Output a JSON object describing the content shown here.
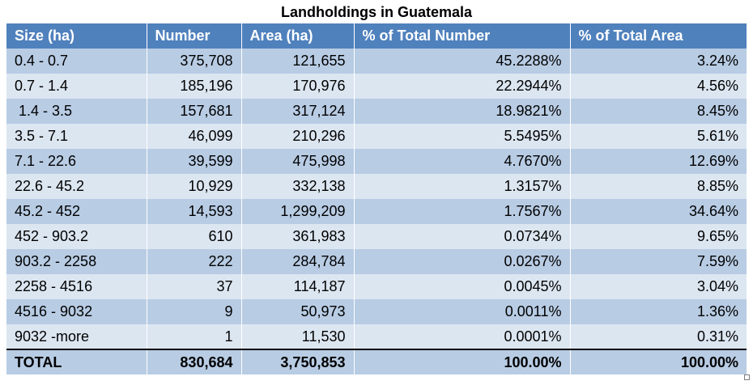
{
  "title": "Landholdings in Guatemala",
  "columns": [
    "Size (ha)",
    "Number",
    "Area (ha)",
    "% of Total Number",
    "% of Total Area"
  ],
  "rows": [
    [
      "0.4 - 0.7",
      "375,708",
      "121,655",
      "45.2288%",
      "3.24%"
    ],
    [
      "0.7 - 1.4",
      "185,196",
      "170,976",
      "22.2944%",
      "4.56%"
    ],
    [
      " 1.4 - 3.5",
      "157,681",
      "317,124",
      "18.9821%",
      "8.45%"
    ],
    [
      "3.5 - 7.1",
      "46,099",
      "210,296",
      "5.5495%",
      "5.61%"
    ],
    [
      "7.1 - 22.6",
      "39,599",
      "475,998",
      "4.7670%",
      "12.69%"
    ],
    [
      "22.6 - 45.2",
      "10,929",
      "332,138",
      "1.3157%",
      "8.85%"
    ],
    [
      "45.2 - 452",
      "14,593",
      "1,299,209",
      "1.7567%",
      "34.64%"
    ],
    [
      "452 - 903.2",
      "610",
      "361,983",
      "0.0734%",
      "9.65%"
    ],
    [
      "903.2 - 2258",
      "222",
      "284,784",
      "0.0267%",
      "7.59%"
    ],
    [
      "2258 - 4516",
      "37",
      "114,187",
      "0.0045%",
      "3.04%"
    ],
    [
      "4516 - 9032",
      "9",
      "50,973",
      "0.0011%",
      "1.36%"
    ],
    [
      "9032 -more",
      "1",
      "11,530",
      "0.0001%",
      "0.31%"
    ]
  ],
  "total": [
    "TOTAL",
    "830,684",
    "3,750,853",
    "100.00%",
    "100.00%"
  ],
  "colors": {
    "header_bg": "#4f81bd",
    "header_text": "#ffffff",
    "band_dark": "#b8cce4",
    "band_light": "#dce6f1"
  }
}
